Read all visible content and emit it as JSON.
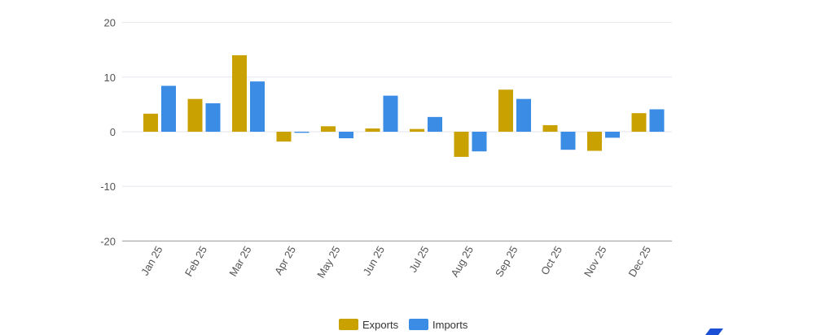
{
  "chart_data": {
    "type": "bar",
    "categories": [
      "Jan 25",
      "Feb 25",
      "Mar 25",
      "Apr 25",
      "May 25",
      "Jun 25",
      "Jul 25",
      "Aug 25",
      "Sep 25",
      "Oct 25",
      "Nov 25",
      "Dec 25"
    ],
    "series": [
      {
        "name": "Exports",
        "color": "#c9a100",
        "values": [
          3.3,
          6.0,
          14.0,
          -1.8,
          1.0,
          0.6,
          0.5,
          -4.6,
          7.7,
          1.2,
          -3.5,
          3.4
        ]
      },
      {
        "name": "Imports",
        "color": "#3a8ce4",
        "values": [
          8.4,
          5.2,
          9.2,
          -0.2,
          -1.2,
          6.6,
          2.7,
          -3.6,
          6.0,
          -3.3,
          -1.1,
          4.1
        ]
      }
    ],
    "yticks": [
      20,
      10,
      0,
      -10,
      -20
    ],
    "ylim": [
      -20,
      20
    ],
    "legend": "bottom",
    "grid": true
  }
}
